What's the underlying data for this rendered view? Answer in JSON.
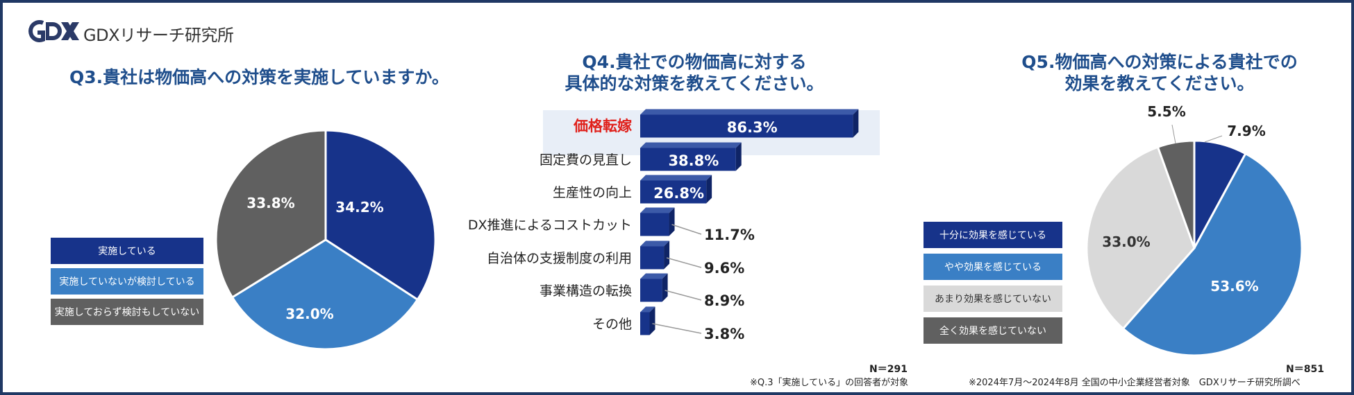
{
  "brand": {
    "logo_text": "GDXリサーチ研究所"
  },
  "chart_data": [
    {
      "type": "pie",
      "title": "Q3.貴社は物価高への対策を実施していますか。",
      "labels": [
        "実施している",
        "実施していないが検討している",
        "実施しておらず検討もしていない"
      ],
      "values": [
        34.2,
        32.0,
        33.8
      ],
      "value_labels": [
        "34.2%",
        "32.0%",
        "33.8%"
      ],
      "colors": [
        "#17338a",
        "#3a7fc5",
        "#606060"
      ],
      "legend": "left"
    },
    {
      "type": "bar",
      "orientation": "horizontal",
      "title": "Q4.貴社での物価高に対する\n具体的な対策を教えてください。",
      "categories": [
        "価格転嫁",
        "固定費の見直し",
        "生産性の向上",
        "DX推進によるコストカット",
        "自治体の支援制度の利用",
        "事業構造の転換",
        "その他"
      ],
      "values": [
        86.3,
        38.8,
        26.8,
        11.7,
        9.6,
        8.9,
        3.8
      ],
      "value_labels": [
        "86.3%",
        "38.8%",
        "26.8%",
        "11.7%",
        "9.6%",
        "8.9%",
        "3.8%"
      ],
      "highlight_category": "価格転嫁",
      "highlight_color": "#e0201b",
      "color": "#17338a",
      "n_label": "N＝291",
      "note": "※Q.3「実施している」の回答者が対象"
    },
    {
      "type": "pie",
      "title": "Q5.物価高への対策による貴社での\n効果を教えてください。",
      "labels": [
        "十分に効果を感じている",
        "やや効果を感じている",
        "あまり効果を感じていない",
        "全く効果を感じていない"
      ],
      "values": [
        7.9,
        53.6,
        33.0,
        5.5
      ],
      "value_labels": [
        "7.9%",
        "53.6%",
        "33.0%",
        "5.5%"
      ],
      "colors": [
        "#17338a",
        "#3a7fc5",
        "#d9d9d9",
        "#606060"
      ],
      "legend": "left",
      "n_label": "N＝851",
      "note": "※2024年7月～2024年8月 全国の中小企業経営者対象　GDXリサーチ研究所調べ"
    }
  ]
}
